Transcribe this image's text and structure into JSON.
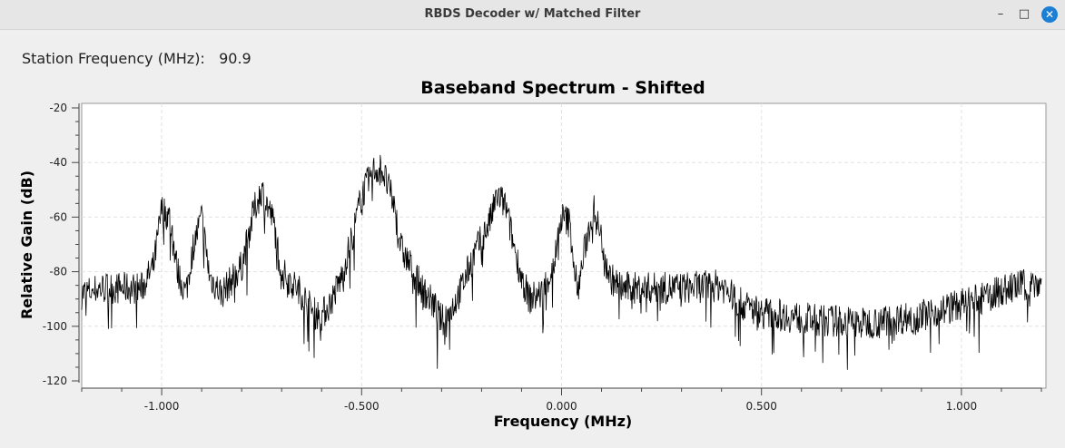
{
  "window": {
    "title": "RBDS Decoder w/ Matched Filter",
    "minimize_icon": "minimize-icon",
    "maximize_icon": "maximize-icon",
    "close_icon": "close-icon"
  },
  "station": {
    "label": "Station Frequency (MHz):",
    "value": "90.9"
  },
  "chart_data": {
    "type": "line",
    "title": "Baseband Spectrum - Shifted",
    "xlabel": "Frequency (MHz)",
    "ylabel": "Relative Gain (dB)",
    "xlim": [
      -1.2,
      1.2
    ],
    "ylim": [
      -120,
      -20
    ],
    "x_ticks": [
      "-1.000",
      "-0.500",
      "0.000",
      "0.500",
      "1.000"
    ],
    "x_tick_values": [
      -1.0,
      -0.5,
      0.0,
      0.5,
      1.0
    ],
    "y_ticks": [
      "-20",
      "-40",
      "-60",
      "-80",
      "-100",
      "-120"
    ],
    "y_tick_values": [
      -20,
      -40,
      -60,
      -80,
      -100,
      -120
    ],
    "grid": true,
    "line_color": "#000000",
    "series": [
      {
        "x": [
          -1.2,
          -1.15,
          -1.1,
          -1.05,
          -1.02,
          -1.0,
          -0.98,
          -0.96,
          -0.94,
          -0.92,
          -0.9,
          -0.88,
          -0.85,
          -0.8,
          -0.77,
          -0.75,
          -0.72,
          -0.7,
          -0.65,
          -0.62,
          -0.6,
          -0.58,
          -0.55,
          -0.52,
          -0.5,
          -0.47,
          -0.45,
          -0.42,
          -0.4,
          -0.37,
          -0.35,
          -0.32,
          -0.3,
          -0.28,
          -0.25,
          -0.22,
          -0.18,
          -0.16,
          -0.14,
          -0.12,
          -0.1,
          -0.08,
          -0.05,
          -0.02,
          0.0,
          0.02,
          0.04,
          0.06,
          0.08,
          0.1,
          0.12,
          0.15,
          0.2,
          0.3,
          0.4,
          0.45,
          0.5,
          0.55,
          0.6,
          0.65,
          0.7,
          0.75,
          0.8,
          0.85,
          0.9,
          0.95,
          1.0,
          1.05,
          1.1,
          1.15,
          1.2
        ],
        "values": [
          -88,
          -86,
          -86,
          -86,
          -78,
          -57,
          -60,
          -80,
          -88,
          -70,
          -60,
          -82,
          -88,
          -78,
          -58,
          -50,
          -62,
          -80,
          -88,
          -95,
          -96,
          -92,
          -82,
          -65,
          -52,
          -43,
          -42,
          -55,
          -72,
          -80,
          -86,
          -92,
          -98,
          -95,
          -86,
          -74,
          -62,
          -52,
          -56,
          -70,
          -82,
          -90,
          -88,
          -78,
          -60,
          -62,
          -88,
          -70,
          -57,
          -68,
          -82,
          -86,
          -86,
          -86,
          -85,
          -92,
          -95,
          -96,
          -97,
          -98,
          -98,
          -99,
          -98,
          -97,
          -96,
          -94,
          -92,
          -90,
          -87,
          -85,
          -84
        ]
      }
    ]
  }
}
